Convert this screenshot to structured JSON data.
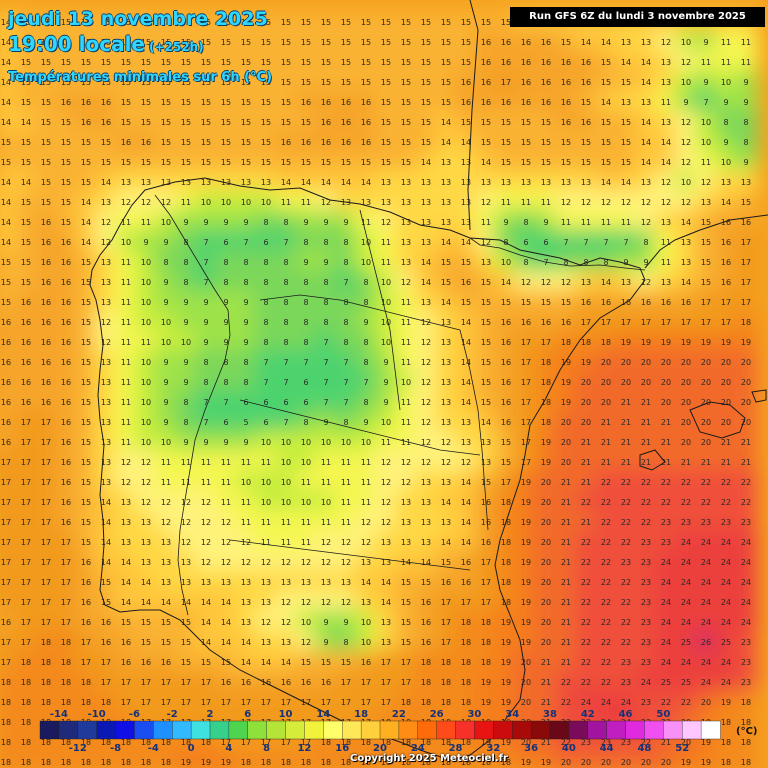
{
  "header": {
    "date_line": "jeudi 13 novembre 2025",
    "time_line": "19:00 locale",
    "lead_time": "(+252h)",
    "field_title": "Températures minimales sur 6h (°C)"
  },
  "run_info": "Run GFS 6Z du lundi 3 novembre 2025",
  "copyright": "Copyright 2025 Meteociel.fr",
  "legend": {
    "unit": "(°C)",
    "upper_labels": [
      "-14",
      "-10",
      "-6",
      "-2",
      "2",
      "6",
      "10",
      "14",
      "18",
      "22",
      "26",
      "30",
      "34",
      "38",
      "42",
      "46",
      "50"
    ],
    "lower_labels": [
      "-12",
      "-8",
      "-4",
      "0",
      "4",
      "8",
      "12",
      "16",
      "20",
      "24",
      "28",
      "32",
      "36",
      "40",
      "44",
      "48",
      "52"
    ],
    "colors": [
      "#1a1a5e",
      "#1f2a7a",
      "#1f3a9a",
      "#0a18b4",
      "#1010e6",
      "#1a4ef0",
      "#1e90ff",
      "#32b9ff",
      "#3fe0e0",
      "#34d08c",
      "#4ed44e",
      "#8ee03a",
      "#b4e438",
      "#d6ec3a",
      "#f0f23c",
      "#ffff6a",
      "#ffe858",
      "#ffcf3c",
      "#ffb020",
      "#ff8c14",
      "#ff6a0a",
      "#ff4a1a",
      "#f8302a",
      "#e81414",
      "#cc0c0c",
      "#a80a0a",
      "#8a0a0a",
      "#6a0818",
      "#7a0a5a",
      "#a014a0",
      "#c01ec0",
      "#e02ae0",
      "#f050f0",
      "#f890f8",
      "#ffc6ff",
      "#ffffff"
    ]
  },
  "map": {
    "colors": {
      "c17": "#f29a1f",
      "c16": "#f6a52a",
      "c15": "#fab233",
      "c14": "#ffc63a",
      "c13": "#ffd844",
      "c12": "#fff27a",
      "c11": "#f4f650",
      "c10": "#c8ee3c",
      "c9": "#9ee24a",
      "c8": "#7ad75a",
      "c7": "#4ed36e",
      "c19": "#f57e1c",
      "c20": "#f26b2a",
      "c22": "#f0503a",
      "c24": "#ec3f3c",
      "c26": "#d72a66",
      "c18": "#f48a1c",
      "border": "#1a1a1a",
      "grid_text": "#2a2a2a"
    },
    "grid_rows": [
      "14 15 15 15 15 15 15 15 15 15 15 15 15 15 15 15 15 15 15 15 15 15 15 15 15 15 14 14 14 14 14 14 14 14 14 14 14 14",
      "14 15 15 15 15 15 15 15 15 15 15 15 15 15 15 15 15 15 15 15 15 15 15 15 16 16 16 16 15 14 14 13 13 12 10 9 11 11",
      "14 15 15 15 15 15 15 15 15 15 15 15 15 15 15 15 15 15 15 15 15 15 15 15 16 16 16 16 16 16 15 14 14 13 12 11 11 11",
      "14 15 15 15 15 15 15 15 15 15 15 15 15 15 15 15 15 15 15 15 15 15 15 16 16 17 16 16 16 16 15 15 14 13 10 9 10 9",
      "14 15 15 16 16 16 15 15 15 15 15 15 15 15 15 16 16 16 16 15 15 15 15 16 16 16 16 16 16 15 14 13 13 11 9 7 9 9",
      "14 14 15 15 16 16 15 15 15 15 15 15 15 15 15 15 16 16 16 15 15 15 14 15 15 15 15 15 16 16 15 15 14 13 12 10 8 8",
      "15 15 15 15 15 15 16 16 15 15 15 15 15 15 16 16 16 16 16 15 15 15 14 14 15 15 15 15 15 15 15 15 14 14 12 10 9 8",
      "15 15 15 15 15 15 15 15 15 15 15 15 15 15 15 15 15 15 15 15 15 14 13 13 14 15 15 15 15 15 15 15 14 14 12 11 10 9",
      "14 14 15 15 15 14 13 13 13 13 13 13 13 13 14 14 14 14 14 13 13 13 13 13 13 13 13 13 13 13 14 14 13 12 10 12 13 13",
      "14 15 15 15 14 13 12 12 12 11 10 10 10 10 11 11 12 13 13 13 13 13 13 13 12 11 11 11 12 12 12 12 12 12 12 13 14 15",
      "14 15 16 15 14 12 11 11 10 9 9 9 9 8 8 9 9 9 11 12 13 13 13 13 11 9 8 9 11 11 11 11 12 13 14 15 16 16",
      "14 15 16 16 14 12 10 9 9 8 7 6 7 6 7 8 8 8 10 11 13 13 14 14 12 8 6 6 7 7 7 7 8 11 13 15 16 17",
      "15 15 16 16 15 13 11 10 8 8 7 8 8 8 8 9 9 8 10 11 13 14 15 15 13 10 8 7 8 8 8 9 9 11 13 15 16 17",
      "15 15 16 16 15 13 11 10 9 8 7 8 8 8 8 8 8 7 8 10 12 14 15 16 15 14 12 12 12 13 14 13 12 13 14 15 16 17",
      "15 16 16 16 15 13 11 10 9 9 9 9 9 8 8 8 8 8 8 10 11 13 14 15 15 15 15 15 15 16 16 16 16 16 16 17 17 17",
      "16 16 16 16 15 12 11 10 10 9 9 9 9 8 8 8 8 8 9 10 11 12 13 14 15 16 16 16 16 17 17 17 17 17 17 17 17 18",
      "16 16 16 16 15 12 11 11 10 10 9 9 9 8 8 8 7 8 8 10 11 12 13 14 15 16 17 17 18 18 18 19 19 19 19 19 19 19",
      "16 16 16 16 15 13 11 10 9 9 8 8 8 7 7 7 7 7 8 9 11 12 13 14 15 16 17 18 19 19 20 20 20 20 20 20 20 20",
      "16 16 16 16 15 13 11 10 9 9 8 8 8 7 7 6 7 7 7 9 10 12 13 14 15 16 17 18 19 20 20 20 20 20 20 20 20 20",
      "16 16 16 16 15 13 11 10 9 8 7 7 6 6 6 6 7 7 8 9 11 12 13 14 15 16 17 18 19 20 20 21 21 20 20 20 20 20",
      "16 17 17 16 15 13 11 10 9 8 7 6 5 6 7 8 9 8 9 10 11 12 13 13 14 16 17 18 20 20 21 21 21 21 20 20 20 20",
      "16 17 17 16 15 13 11 10 10 9 9 9 9 10 10 10 10 10 10 11 11 12 12 13 13 15 17 19 20 21 21 21 21 21 20 20 21 21",
      "17 17 17 16 15 13 12 12 11 11 11 11 11 11 10 10 11 11 11 12 12 12 12 12 13 15 17 19 20 21 21 21 21 21 21 21 21 21",
      "17 17 17 16 15 13 12 12 11 11 11 11 10 10 10 11 11 11 11 12 12 13 13 14 15 17 19 20 21 21 22 22 22 22 22 22 22 22",
      "17 17 17 16 15 14 13 12 12 12 12 11 11 10 10 10 10 11 11 12 13 13 14 14 16 18 19 20 21 22 22 22 22 22 22 22 22 22",
      "17 17 17 16 15 14 13 13 12 12 12 12 11 11 11 11 11 11 12 12 13 13 13 14 16 18 19 20 21 21 22 22 22 23 23 23 23 23",
      "17 17 17 17 15 14 13 13 13 12 12 12 12 11 11 11 12 12 12 13 13 13 14 14 16 18 19 20 21 22 22 22 23 23 24 24 24 24",
      "17 17 17 17 16 14 14 13 13 13 12 12 12 12 12 12 12 12 13 13 14 14 15 16 17 18 19 20 21 22 22 23 23 24 24 24 24 24",
      "17 17 17 17 16 15 14 14 13 13 13 13 13 13 13 13 13 13 14 14 15 15 16 16 17 18 19 20 21 22 22 22 23 24 24 24 24 24",
      "17 17 17 17 16 15 14 14 14 14 14 14 13 13 12 12 12 12 13 14 15 16 17 17 17 18 19 20 21 22 22 22 23 24 24 24 24 24",
      "16 17 17 17 16 16 15 15 15 15 14 14 13 12 12 10 9 9 10 13 15 16 17 18 18 19 19 20 21 22 22 22 23 24 24 24 24 24",
      "17 17 18 18 17 16 16 15 15 15 14 14 14 13 13 12 9 8 10 13 15 16 17 18 18 19 19 20 21 22 22 22 23 24 25 26 25 23",
      "17 18 18 18 17 17 16 16 16 15 15 15 14 14 14 15 15 15 16 17 17 18 18 18 18 19 20 21 21 22 22 23 23 24 24 24 24 23",
      "18 18 18 18 18 17 17 17 17 17 17 16 16 16 16 16 16 17 17 17 17 18 18 18 19 19 20 21 22 22 22 23 24 25 25 24 24 23",
      "18 18 18 18 18 18 17 17 17 17 17 17 17 17 17 17 17 17 17 17 18 18 18 18 19 19 20 21 22 24 24 24 23 22 22 20 19 18",
      "18 18 18 18 18 18 18 17 17 17 17 17 17 17 17 17 17 17 17 18 18 18 18 18 19 19 20 21 22 23 24 24 23 22 20 19 18 18",
      "18 18 18 18 18 18 18 18 18 18 18 17 17 17 17 17 18 18 18 18 18 18 18 18 19 19 20 21 22 23 23 23 22 21 20 19 18 18",
      "18 18 18 18 18 18 18 18 18 19 19 19 18 18 18 18 18 18 18 18 18 18 18 18 18 18 19 19 20 20 20 20 20 20 19 19 18 18"
    ]
  }
}
